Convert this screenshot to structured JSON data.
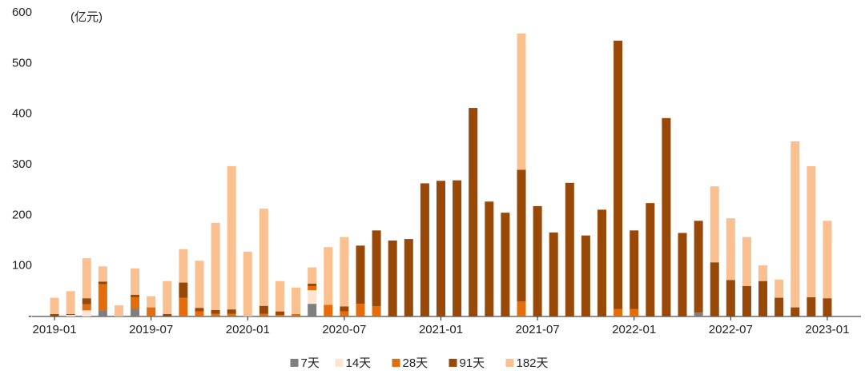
{
  "chart_data": {
    "type": "stacked_bar",
    "annotation": "(亿元)",
    "categories": [
      "2019-01",
      null,
      null,
      null,
      null,
      null,
      "2019-07",
      null,
      null,
      null,
      null,
      null,
      "2020-01",
      null,
      null,
      null,
      null,
      null,
      "2020-07",
      null,
      null,
      null,
      null,
      null,
      "2021-01",
      null,
      null,
      null,
      null,
      null,
      "2021-07",
      null,
      null,
      null,
      null,
      null,
      "2022-01",
      null,
      null,
      null,
      null,
      null,
      "2022-07",
      null,
      null,
      null,
      null,
      null,
      "2023-01"
    ],
    "series": [
      {
        "name": "7天",
        "color": "#7f7f7f",
        "values": [
          0,
          0,
          0,
          12,
          0,
          15,
          0,
          0,
          0,
          0,
          0,
          0,
          0,
          0,
          0,
          0,
          25,
          0,
          0,
          0,
          0,
          0,
          0,
          0,
          0,
          0,
          0,
          0,
          0,
          0,
          0,
          0,
          0,
          0,
          0,
          0,
          0,
          0,
          0,
          0,
          8,
          0,
          0,
          0,
          0,
          0,
          0,
          0,
          0
        ]
      },
      {
        "name": "14天",
        "color": "#fde5d4",
        "values": [
          0,
          3,
          12,
          0,
          0,
          0,
          0,
          0,
          0,
          0,
          0,
          0,
          0,
          0,
          0,
          0,
          27,
          0,
          0,
          0,
          0,
          0,
          0,
          0,
          0,
          0,
          0,
          0,
          0,
          0,
          0,
          0,
          0,
          0,
          0,
          0,
          0,
          0,
          0,
          0,
          0,
          0,
          0,
          0,
          0,
          0,
          0,
          0,
          0
        ]
      },
      {
        "name": "28天",
        "color": "#e46c0a",
        "values": [
          0,
          0,
          12,
          52,
          0,
          23,
          18,
          0,
          37,
          10,
          5,
          5,
          0,
          5,
          3,
          5,
          8,
          23,
          10,
          25,
          20,
          0,
          0,
          0,
          0,
          0,
          0,
          0,
          0,
          30,
          0,
          0,
          0,
          0,
          0,
          15,
          15,
          0,
          0,
          0,
          0,
          0,
          0,
          0,
          0,
          0,
          0,
          0,
          0
        ]
      },
      {
        "name": "91天",
        "color": "#984807",
        "values": [
          5,
          2,
          12,
          5,
          0,
          5,
          0,
          5,
          30,
          7,
          8,
          9,
          0,
          16,
          7,
          0,
          5,
          0,
          10,
          115,
          150,
          150,
          153,
          263,
          268,
          269,
          412,
          227,
          205,
          260,
          218,
          166,
          264,
          160,
          211,
          530,
          155,
          224,
          392,
          165,
          181,
          107,
          72,
          60,
          70,
          37,
          18,
          38,
          36
        ]
      },
      {
        "name": "182天",
        "color": "#fac090",
        "values": [
          32,
          45,
          79,
          30,
          22,
          52,
          22,
          65,
          66,
          93,
          172,
          283,
          128,
          192,
          60,
          52,
          32,
          114,
          137,
          0,
          0,
          0,
          0,
          0,
          0,
          0,
          0,
          0,
          0,
          269,
          0,
          0,
          0,
          0,
          0,
          0,
          0,
          0,
          0,
          0,
          0,
          150,
          122,
          97,
          31,
          36,
          328,
          259,
          153
        ]
      }
    ],
    "ylim": [
      0,
      600
    ],
    "yticks": [
      {
        "value": 0,
        "label": "-"
      },
      100,
      200,
      300,
      400,
      500,
      600
    ],
    "legend": "bottom"
  }
}
